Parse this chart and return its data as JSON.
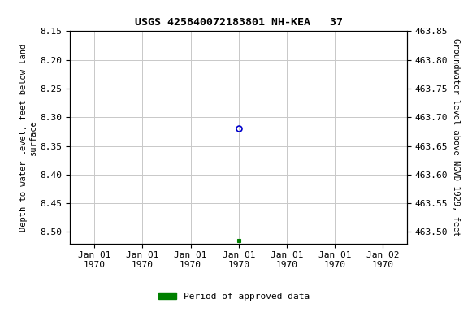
{
  "title": "USGS 425840072183801 NH-KEA   37",
  "ylabel_left": "Depth to water level, feet below land\nsurface",
  "ylabel_right": "Groundwater level above NGVD 1929, feet",
  "ylim_left_top": 8.15,
  "ylim_left_bottom": 8.52,
  "ylim_right_top": 463.85,
  "ylim_right_bottom": 463.48,
  "yticks_left": [
    8.15,
    8.2,
    8.25,
    8.3,
    8.35,
    8.4,
    8.45,
    8.5
  ],
  "yticks_right": [
    463.85,
    463.8,
    463.75,
    463.7,
    463.65,
    463.6,
    463.55,
    463.5
  ],
  "data_point_blue_x": 0.0,
  "data_point_blue_y": 8.32,
  "data_point_green_x": 0.0,
  "data_point_green_y": 8.515,
  "xtick_labels": [
    "Jan 01\n1970",
    "Jan 01\n1970",
    "Jan 01\n1970",
    "Jan 01\n1970",
    "Jan 01\n1970",
    "Jan 01\n1970",
    "Jan 02\n1970"
  ],
  "xtick_positions": [
    -3,
    -2,
    -1,
    0,
    1,
    2,
    3
  ],
  "xlim": [
    -3.5,
    3.5
  ],
  "background_color": "#ffffff",
  "grid_color": "#c8c8c8",
  "legend_label": "Period of approved data",
  "legend_color": "#008000",
  "blue_marker_color": "#0000cc",
  "title_fontsize": 9.5,
  "tick_fontsize": 8,
  "label_fontsize": 7.5,
  "legend_fontsize": 8
}
